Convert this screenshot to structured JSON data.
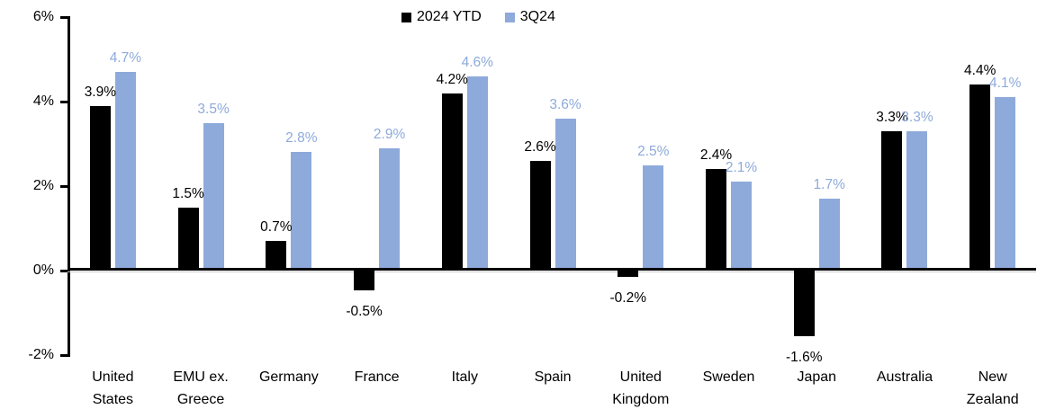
{
  "chart_data": {
    "type": "bar",
    "title": "",
    "categories": [
      "United States",
      "EMU ex. Greece",
      "Germany",
      "France",
      "Italy",
      "Spain",
      "United Kingdom",
      "Sweden",
      "Japan",
      "Australia",
      "New Zealand"
    ],
    "categories_display": [
      [
        "United",
        "States"
      ],
      [
        "EMU ex.",
        "Greece"
      ],
      [
        "Germany"
      ],
      [
        "France"
      ],
      [
        "Italy"
      ],
      [
        "Spain"
      ],
      [
        "United",
        "Kingdom"
      ],
      [
        "Sweden"
      ],
      [
        "Japan"
      ],
      [
        "Australia"
      ],
      [
        "New",
        "Zealand"
      ]
    ],
    "series": [
      {
        "name": "2024 YTD",
        "color": "#000000",
        "values": [
          3.9,
          1.5,
          0.7,
          -0.5,
          4.2,
          2.6,
          -0.2,
          2.4,
          -1.6,
          3.3,
          4.4
        ]
      },
      {
        "name": "3Q24",
        "color": "#8EAADB",
        "values": [
          4.7,
          3.5,
          2.8,
          2.9,
          4.6,
          3.6,
          2.5,
          2.1,
          1.7,
          3.3,
          4.1
        ]
      }
    ],
    "value_labels": [
      "3.9%",
      "1.5%",
      "0.7%",
      "-0.5%",
      "4.2%",
      "2.6%",
      "-0.2%",
      "2.4%",
      "-1.6%",
      "3.3%",
      "4.4%",
      "4.7%",
      "3.5%",
      "2.8%",
      "2.9%",
      "4.6%",
      "3.6%",
      "2.5%",
      "2.1%",
      "1.7%",
      "3.3%",
      "4.1%"
    ],
    "y_axis": {
      "ylim": [
        -2,
        6
      ],
      "tick_values": [
        6,
        4,
        2,
        0,
        -2
      ],
      "tick_labels": [
        "6%",
        "4%",
        "2%",
        "0%",
        "-2%"
      ]
    },
    "legend_position": "top-center",
    "grid": false,
    "background_color": "#FFFFFF",
    "axis_color": "#000000"
  }
}
